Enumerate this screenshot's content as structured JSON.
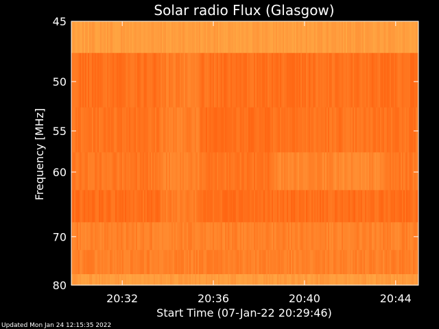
{
  "chart_data": {
    "type": "heatmap",
    "title": "Solar radio Flux (Glasgow)",
    "xlabel": "Start Time (07-Jan-22 20:29:46)",
    "ylabel": "Frequency [MHz]",
    "x_axis": {
      "unit": "time (HH:MM)",
      "range": [
        "20:29:46",
        "20:45:00"
      ],
      "ticks": [
        "20:32",
        "20:36",
        "20:40",
        "20:44"
      ]
    },
    "y_axis": {
      "unit": "MHz",
      "scale": "reciprocal",
      "range": [
        45,
        80
      ],
      "ticks": [
        45,
        50,
        55,
        60,
        70,
        80
      ]
    },
    "frequency_bands": [
      {
        "from": 45.0,
        "to": 47.5,
        "level": 0.72
      },
      {
        "from": 47.5,
        "to": 52.5,
        "level": 0.25
      },
      {
        "from": 52.5,
        "to": 57.5,
        "level": 0.28
      },
      {
        "from": 57.5,
        "to": 62.5,
        "level": 0.32
      },
      {
        "from": 62.5,
        "to": 67.5,
        "level": 0.22
      },
      {
        "from": 67.5,
        "to": 72.5,
        "level": 0.42
      },
      {
        "from": 72.5,
        "to": 77.5,
        "level": 0.4
      },
      {
        "from": 77.5,
        "to": 80.0,
        "level": 0.7
      }
    ],
    "colormap": [
      "#ff5a0a",
      "#ff7a22",
      "#ff9a3c",
      "#ffb248"
    ],
    "grid": false,
    "legend": "none"
  },
  "footer": {
    "updated_text": "Updated Mon Jan 24 12:15:35 2022"
  },
  "colors": {
    "background": "#000000",
    "text": "#ffffff",
    "axis": "#ffffff"
  }
}
